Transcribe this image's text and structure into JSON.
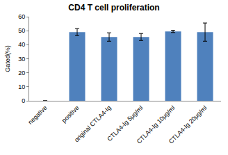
{
  "chart_data": {
    "type": "bar",
    "title": "CD4 T cell proliferation",
    "y_label": "Gated(%)",
    "categories": [
      "negative",
      "positive",
      "original CTLA4-Ig",
      "CTLA4-Ig 5μg/ml",
      "CTLA4-Ig 10μg/ml",
      "CTLA4-Ig 20μg/ml"
    ],
    "values": [
      0,
      49,
      45.5,
      45.5,
      49.5,
      49
    ],
    "errors": [
      0,
      2.5,
      3,
      2.5,
      0.8,
      6.5
    ],
    "color": "#4f81bd",
    "ylim": [
      0,
      60
    ],
    "yticks": [
      0,
      10,
      20,
      30,
      40,
      50,
      60
    ],
    "grid": false
  }
}
